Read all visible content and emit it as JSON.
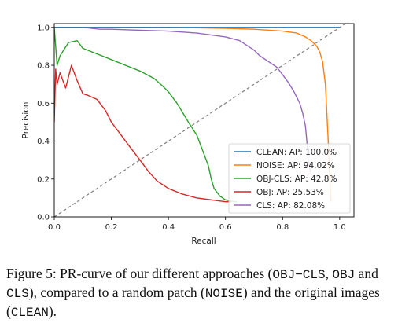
{
  "chart_data": {
    "type": "line",
    "xlabel": "Recall",
    "ylabel": "Precision",
    "xlim": [
      0.0,
      1.05
    ],
    "ylim": [
      0.0,
      1.02
    ],
    "xticks": [
      "0.0",
      "0.2",
      "0.4",
      "0.6",
      "0.8",
      "1.0"
    ],
    "yticks": [
      "0.0",
      "0.2",
      "0.4",
      "0.6",
      "0.8",
      "1.0"
    ],
    "grid": false,
    "legend_position": "lower-right",
    "series": [
      {
        "name": "CLEAN: AP: 100.0%",
        "color": "#1f77b4",
        "x": [
          0.0,
          0.2,
          0.4,
          0.6,
          0.8,
          1.0
        ],
        "y": [
          1.0,
          1.0,
          1.0,
          1.0,
          1.0,
          1.0
        ]
      },
      {
        "name": "NOISE: AP: 94.02%",
        "color": "#ff7f0e",
        "x": [
          0.0,
          0.2,
          0.4,
          0.6,
          0.7,
          0.8,
          0.85,
          0.88,
          0.9,
          0.92,
          0.93,
          0.94,
          0.95,
          0.955,
          0.96,
          0.965,
          0.97
        ],
        "y": [
          1.0,
          1.0,
          1.0,
          0.995,
          0.99,
          0.98,
          0.97,
          0.95,
          0.93,
          0.9,
          0.87,
          0.82,
          0.7,
          0.55,
          0.4,
          0.2,
          0.08
        ]
      },
      {
        "name": "OBJ-CLS: AP: 42.8%",
        "color": "#2ca02c",
        "x": [
          0.0,
          0.01,
          0.02,
          0.05,
          0.08,
          0.1,
          0.15,
          0.2,
          0.25,
          0.3,
          0.35,
          0.38,
          0.4,
          0.43,
          0.45,
          0.47,
          0.5,
          0.52,
          0.54,
          0.55,
          0.56,
          0.58,
          0.6,
          0.62,
          0.64
        ],
        "y": [
          1.0,
          0.8,
          0.85,
          0.92,
          0.93,
          0.89,
          0.86,
          0.83,
          0.8,
          0.77,
          0.73,
          0.69,
          0.66,
          0.6,
          0.55,
          0.5,
          0.43,
          0.35,
          0.27,
          0.2,
          0.15,
          0.11,
          0.09,
          0.083,
          0.08
        ]
      },
      {
        "name": "OBJ: AP: 25.53%",
        "color": "#d62728",
        "x": [
          0.0,
          0.005,
          0.01,
          0.02,
          0.04,
          0.06,
          0.08,
          0.1,
          0.12,
          0.15,
          0.18,
          0.2,
          0.23,
          0.26,
          0.3,
          0.33,
          0.36,
          0.4,
          0.45,
          0.5,
          0.55,
          0.6,
          0.62
        ],
        "y": [
          0.5,
          0.78,
          0.7,
          0.76,
          0.68,
          0.8,
          0.72,
          0.65,
          0.64,
          0.62,
          0.56,
          0.5,
          0.44,
          0.38,
          0.3,
          0.24,
          0.19,
          0.15,
          0.12,
          0.1,
          0.09,
          0.08,
          0.08
        ]
      },
      {
        "name": "CLS: AP: 82.08%",
        "color": "#9467bd",
        "x": [
          0.0,
          0.1,
          0.16,
          0.2,
          0.3,
          0.4,
          0.5,
          0.6,
          0.65,
          0.7,
          0.72,
          0.75,
          0.78,
          0.8,
          0.82,
          0.84,
          0.86,
          0.87,
          0.88,
          0.885,
          0.89,
          0.9
        ],
        "y": [
          1.0,
          1.0,
          0.99,
          0.99,
          0.985,
          0.98,
          0.97,
          0.95,
          0.93,
          0.88,
          0.85,
          0.82,
          0.79,
          0.75,
          0.71,
          0.66,
          0.6,
          0.55,
          0.48,
          0.4,
          0.3,
          0.22
        ]
      },
      {
        "name": "",
        "color": "#7f7f7f",
        "style": "dashed",
        "x": [
          0.0,
          1.05
        ],
        "y": [
          0.0,
          1.05
        ]
      }
    ]
  },
  "caption": {
    "t1": "Figure 5: PR-curve of our different approaches (",
    "m1": "OBJ−CLS",
    "t2": ",",
    "m2": "OBJ",
    "t3": " and ",
    "m3": "CLS",
    "t4": "), compared to a random patch (",
    "m4": "NOISE",
    "t5": ") and the original images (",
    "m5": "CLEAN",
    "t6": ")."
  }
}
